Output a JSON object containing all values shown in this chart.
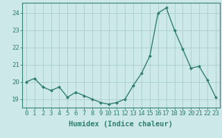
{
  "x": [
    0,
    1,
    2,
    3,
    4,
    5,
    6,
    7,
    8,
    9,
    10,
    11,
    12,
    13,
    14,
    15,
    16,
    17,
    18,
    19,
    20,
    21,
    22,
    23
  ],
  "y": [
    20.0,
    20.2,
    19.7,
    19.5,
    19.7,
    19.1,
    19.4,
    19.2,
    19.0,
    18.8,
    18.7,
    18.8,
    19.0,
    19.8,
    20.5,
    21.5,
    24.0,
    24.3,
    23.0,
    21.9,
    20.8,
    20.9,
    20.1,
    19.1
  ],
  "xlabel": "Humidex (Indice chaleur)",
  "ylim": [
    18.5,
    24.6
  ],
  "xlim": [
    -0.5,
    23.5
  ],
  "yticks": [
    19,
    20,
    21,
    22,
    23,
    24
  ],
  "xticks": [
    0,
    1,
    2,
    3,
    4,
    5,
    6,
    7,
    8,
    9,
    10,
    11,
    12,
    13,
    14,
    15,
    16,
    17,
    18,
    19,
    20,
    21,
    22,
    23
  ],
  "line_color": "#2e7d6e",
  "marker": "D",
  "marker_size": 2.0,
  "bg_color": "#cce8e8",
  "grid_color": "#aacccc",
  "axis_label_fontsize": 7.5,
  "tick_fontsize": 6.5,
  "line_width": 1.0
}
